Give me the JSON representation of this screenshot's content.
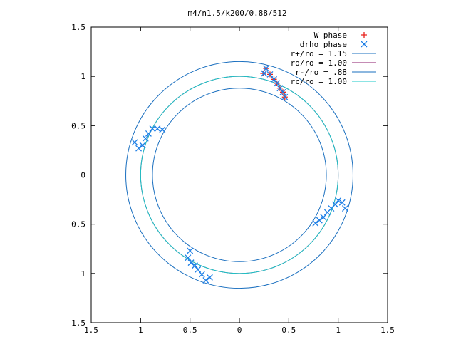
{
  "chart_data": {
    "type": "scatter",
    "title": "m4/n1.5/k200/0.88/512",
    "xlabel": "",
    "ylabel": "",
    "xlim": [
      -1.5,
      1.5
    ],
    "ylim": [
      -1.5,
      1.5
    ],
    "x_ticks": [
      -1.5,
      -1,
      -0.5,
      0,
      0.5,
      1,
      1.5
    ],
    "y_ticks": [
      1.5,
      1,
      0.5,
      0,
      -0.5,
      -1,
      -1.5
    ],
    "x_tick_labels": [
      "1.5",
      "1",
      "0.5",
      "0",
      "0.5",
      "1",
      "1.5"
    ],
    "y_tick_labels": [
      "1.5",
      "1",
      "0.5",
      "0",
      "0.5",
      "1",
      "1.5"
    ],
    "grid": false,
    "legend_position": "top-right",
    "circles": [
      {
        "name": "r+/ro = 1.15",
        "radius": 1.15,
        "color": "#1a6fbf"
      },
      {
        "name": "ro/ro = 1.00",
        "radius": 1.0,
        "color": "#8b1a6b"
      },
      {
        "name": "r-/ro = .88",
        "radius": 0.88,
        "color": "#1a6fbf"
      },
      {
        "name": "rc/ro = 1.00",
        "radius": 1.0,
        "color": "#19c8c8"
      }
    ],
    "series": [
      {
        "name": "W phase",
        "marker": "+",
        "color": "#e8231d",
        "x": [
          0.24,
          0.27,
          0.31,
          0.35,
          0.38,
          0.41,
          0.44,
          0.46
        ],
        "y": [
          1.03,
          1.08,
          1.02,
          0.97,
          0.93,
          0.88,
          0.84,
          0.79
        ]
      },
      {
        "name": "drho phase",
        "marker": "x",
        "color": "#1c7ee6",
        "x": [
          0.25,
          0.27,
          0.31,
          0.35,
          0.38,
          0.41,
          0.44,
          0.46,
          0.77,
          0.81,
          0.85,
          0.89,
          0.93,
          0.97,
          1.0,
          1.04,
          1.07,
          -1.06,
          -1.02,
          -0.98,
          -0.95,
          -0.92,
          -0.88,
          -0.83,
          -0.78,
          -0.5,
          -0.52,
          -0.49,
          -0.45,
          -0.42,
          -0.38,
          -0.34,
          -0.3
        ],
        "y": [
          1.03,
          1.08,
          1.02,
          0.97,
          0.93,
          0.88,
          0.84,
          0.79,
          -0.49,
          -0.46,
          -0.43,
          -0.38,
          -0.34,
          -0.3,
          -0.26,
          -0.28,
          -0.34,
          0.33,
          0.27,
          0.3,
          0.37,
          0.42,
          0.47,
          0.47,
          0.46,
          -0.77,
          -0.84,
          -0.89,
          -0.92,
          -0.96,
          -1.01,
          -1.07,
          -1.04
        ]
      }
    ]
  }
}
